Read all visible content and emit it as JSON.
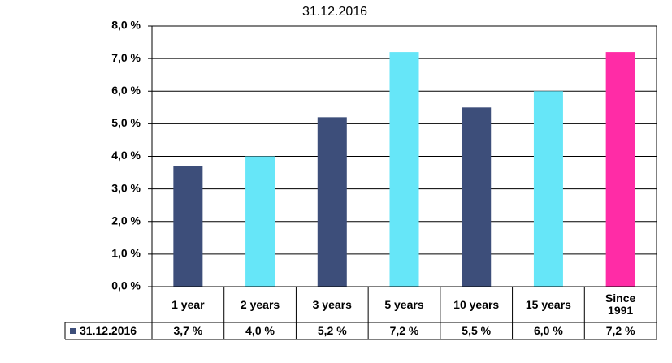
{
  "chart_data": {
    "type": "bar",
    "title": "31.12.2016",
    "categories": [
      "1 year",
      "2 years",
      "3 years",
      "5 years",
      "10 years",
      "15 years",
      "Since\n1991"
    ],
    "series": [
      {
        "name": "31.12.2016",
        "color": "#3d4e7a",
        "colors": [
          "#3d4e7a",
          "#66e6f8",
          "#3d4e7a",
          "#66e6f8",
          "#3d4e7a",
          "#66e6f8",
          "#ff2ca6"
        ],
        "values": [
          3.7,
          4.0,
          5.2,
          7.2,
          5.5,
          6.0,
          7.2
        ],
        "value_labels": [
          "3,7 %",
          "4,0 %",
          "5,2 %",
          "7,2 %",
          "5,5 %",
          "6,0 %",
          "7,2 %"
        ]
      }
    ],
    "ylim": [
      0,
      8
    ],
    "yticks": [
      {
        "value": 0,
        "label": "0,0 %"
      },
      {
        "value": 1,
        "label": "1,0 %"
      },
      {
        "value": 2,
        "label": "2,0 %"
      },
      {
        "value": 3,
        "label": "3,0 %"
      },
      {
        "value": 4,
        "label": "4,0 %"
      },
      {
        "value": 5,
        "label": "5,0 %"
      },
      {
        "value": 6,
        "label": "6,0 %"
      },
      {
        "value": 7,
        "label": "7,0 %"
      },
      {
        "value": 8,
        "label": "8,0 %"
      }
    ],
    "grid": true
  }
}
